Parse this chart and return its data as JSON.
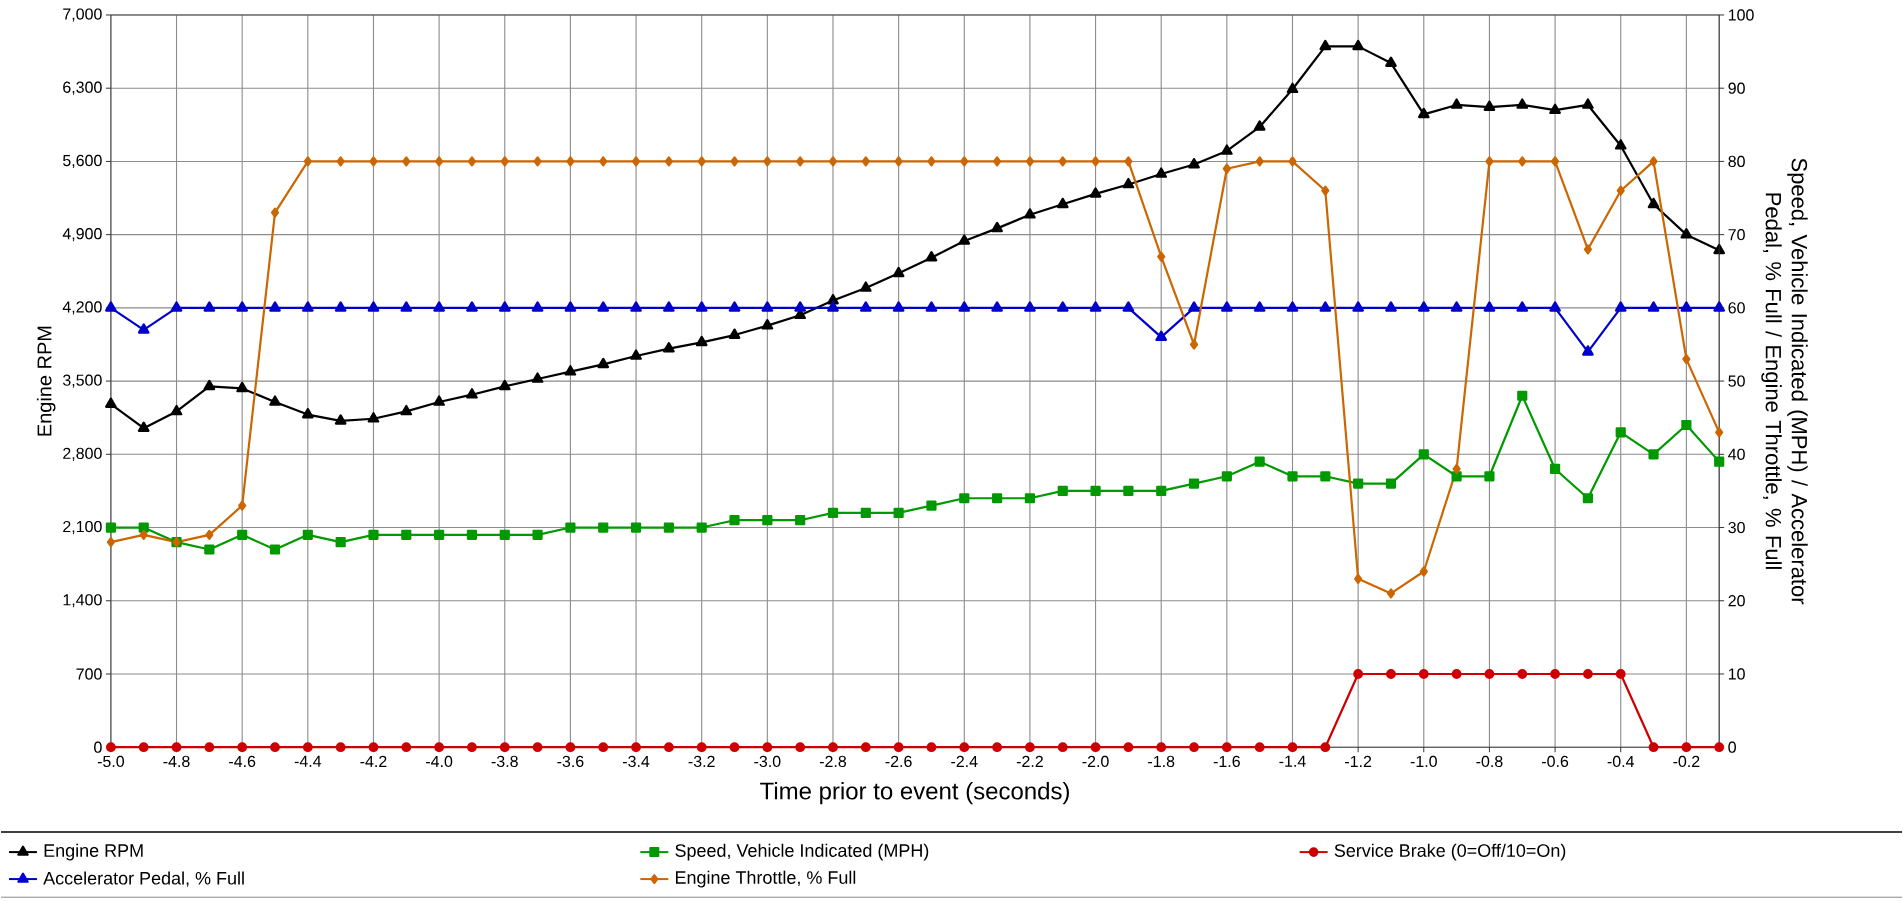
{
  "chart_data": {
    "type": "line",
    "xlabel": "Time prior to event (seconds)",
    "ylabel": "Engine RPM",
    "y2label": "Speed, Vehicle Indicated (MPH) / Accelerator Pedal, % Full / Engine Throttle, % Full",
    "x": [
      -5.0,
      -4.9,
      -4.8,
      -4.7,
      -4.6,
      -4.5,
      -4.4,
      -4.3,
      -4.2,
      -4.1,
      -4.0,
      -3.9,
      -3.8,
      -3.7,
      -3.6,
      -3.5,
      -3.4,
      -3.3,
      -3.2,
      -3.1,
      -3.0,
      -2.9,
      -2.8,
      -2.7,
      -2.6,
      -2.5,
      -2.4,
      -2.3,
      -2.2,
      -2.1,
      -2.0,
      -1.9,
      -1.8,
      -1.7,
      -1.6,
      -1.5,
      -1.4,
      -1.3,
      -1.2,
      -1.1,
      -1.0,
      -0.9,
      -0.8,
      -0.7,
      -0.6,
      -0.5,
      -0.4,
      -0.3,
      -0.2,
      -0.1
    ],
    "series": [
      {
        "name": "Engine RPM",
        "color": "#000000",
        "marker": "triangle",
        "values": [
          3280,
          3050,
          3210,
          3450,
          3430,
          3300,
          3180,
          3120,
          3140,
          3210,
          3300,
          3370,
          3450,
          3520,
          3590,
          3660,
          3740,
          3810,
          3870,
          3940,
          4030,
          4130,
          4270,
          4390,
          4530,
          4680,
          4840,
          4960,
          5090,
          5190,
          5290,
          5380,
          5480,
          5570,
          5700,
          5930,
          6290,
          6700,
          6700,
          6540,
          6050,
          6140,
          6120,
          6140,
          6090,
          6140,
          5750,
          5190,
          4900,
          4750
        ]
      },
      {
        "name": "Speed, Vehicle Indicated (MPH)",
        "color": "#009900",
        "marker": "square",
        "axis": "y2",
        "values": [
          30,
          30,
          28,
          27,
          29,
          27,
          29,
          28,
          29,
          29,
          29,
          29,
          29,
          29,
          30,
          30,
          30,
          30,
          30,
          31,
          31,
          31,
          32,
          32,
          32,
          33,
          34,
          34,
          34,
          35,
          35,
          35,
          35,
          36,
          37,
          39,
          37,
          37,
          36,
          36,
          40,
          37,
          37,
          48,
          38,
          34,
          43,
          40,
          44,
          39
        ]
      },
      {
        "name": "Service Brake (0=Off/10=On)",
        "color": "#cc0000",
        "marker": "circle",
        "axis": "y2",
        "values": [
          0,
          0,
          0,
          0,
          0,
          0,
          0,
          0,
          0,
          0,
          0,
          0,
          0,
          0,
          0,
          0,
          0,
          0,
          0,
          0,
          0,
          0,
          0,
          0,
          0,
          0,
          0,
          0,
          0,
          0,
          0,
          0,
          0,
          0,
          0,
          0,
          0,
          0,
          10,
          10,
          10,
          10,
          10,
          10,
          10,
          10,
          10,
          0,
          0,
          0
        ]
      },
      {
        "name": "Accelerator Pedal, % Full",
        "color": "#0000cc",
        "marker": "triangle",
        "axis": "y2",
        "values": [
          60,
          57,
          60,
          60,
          60,
          60,
          60,
          60,
          60,
          60,
          60,
          60,
          60,
          60,
          60,
          60,
          60,
          60,
          60,
          60,
          60,
          60,
          60,
          60,
          60,
          60,
          60,
          60,
          60,
          60,
          60,
          60,
          56,
          60,
          60,
          60,
          60,
          60,
          60,
          60,
          60,
          60,
          60,
          60,
          60,
          54,
          60,
          60,
          60,
          60
        ]
      },
      {
        "name": "Engine Throttle, % Full",
        "color": "#cc6600",
        "marker": "diamond",
        "axis": "y2",
        "values": [
          28,
          29,
          28,
          29,
          33,
          73,
          80,
          80,
          80,
          80,
          80,
          80,
          80,
          80,
          80,
          80,
          80,
          80,
          80,
          80,
          80,
          80,
          80,
          80,
          80,
          80,
          80,
          80,
          80,
          80,
          80,
          80,
          67,
          55,
          79,
          80,
          80,
          76,
          23,
          21,
          24,
          38,
          80,
          80,
          80,
          68,
          76,
          80,
          53,
          43
        ]
      }
    ],
    "xlim": [
      -5.0,
      -0.1
    ],
    "xticks": [
      {
        "value": -5.0,
        "label": "-5.0"
      },
      {
        "value": -4.8,
        "label": "-4.8"
      },
      {
        "value": -4.6,
        "label": "-4.6"
      },
      {
        "value": -4.4,
        "label": "-4.4"
      },
      {
        "value": -4.2,
        "label": "-4.2"
      },
      {
        "value": -4.0,
        "label": "-4.0"
      },
      {
        "value": -3.8,
        "label": "-3.8"
      },
      {
        "value": -3.6,
        "label": "-3.6"
      },
      {
        "value": -3.4,
        "label": "-3.4"
      },
      {
        "value": -3.2,
        "label": "-3.2"
      },
      {
        "value": -3.0,
        "label": "-3.0"
      },
      {
        "value": -2.8,
        "label": "-2.8"
      },
      {
        "value": -2.6,
        "label": "-2.6"
      },
      {
        "value": -2.4,
        "label": "-2.4"
      },
      {
        "value": -2.2,
        "label": "-2.2"
      },
      {
        "value": -2.0,
        "label": "-2.0"
      },
      {
        "value": -1.8,
        "label": "-1.8"
      },
      {
        "value": -1.6,
        "label": "-1.6"
      },
      {
        "value": -1.4,
        "label": "-1.4"
      },
      {
        "value": -1.2,
        "label": "-1.2"
      },
      {
        "value": -1.0,
        "label": "-1.0"
      },
      {
        "value": -0.8,
        "label": "-0.8"
      },
      {
        "value": -0.6,
        "label": "-0.6"
      },
      {
        "value": -0.4,
        "label": "-0.4"
      },
      {
        "value": -0.2,
        "label": "-0.2"
      }
    ],
    "ylim": [
      0,
      7000
    ],
    "yticks": [
      0,
      700,
      {
        "value": 1400,
        "label": "1,400"
      },
      {
        "value": 2100,
        "label": "2,100"
      },
      {
        "value": 2800,
        "label": "2,800"
      },
      {
        "value": 3500,
        "label": "3,500"
      },
      {
        "value": 4200,
        "label": "4,200"
      },
      {
        "value": 4900,
        "label": "4,900"
      },
      {
        "value": 5600,
        "label": "5,600"
      },
      {
        "value": 6300,
        "label": "6,300"
      },
      {
        "value": 7000,
        "label": "7,000"
      }
    ],
    "y2lim": [
      0,
      100
    ],
    "y2ticks": [
      0,
      10,
      20,
      30,
      40,
      50,
      60,
      70,
      80,
      90,
      100
    ],
    "grid": true,
    "legend": "bottom",
    "line_style": "solid"
  }
}
